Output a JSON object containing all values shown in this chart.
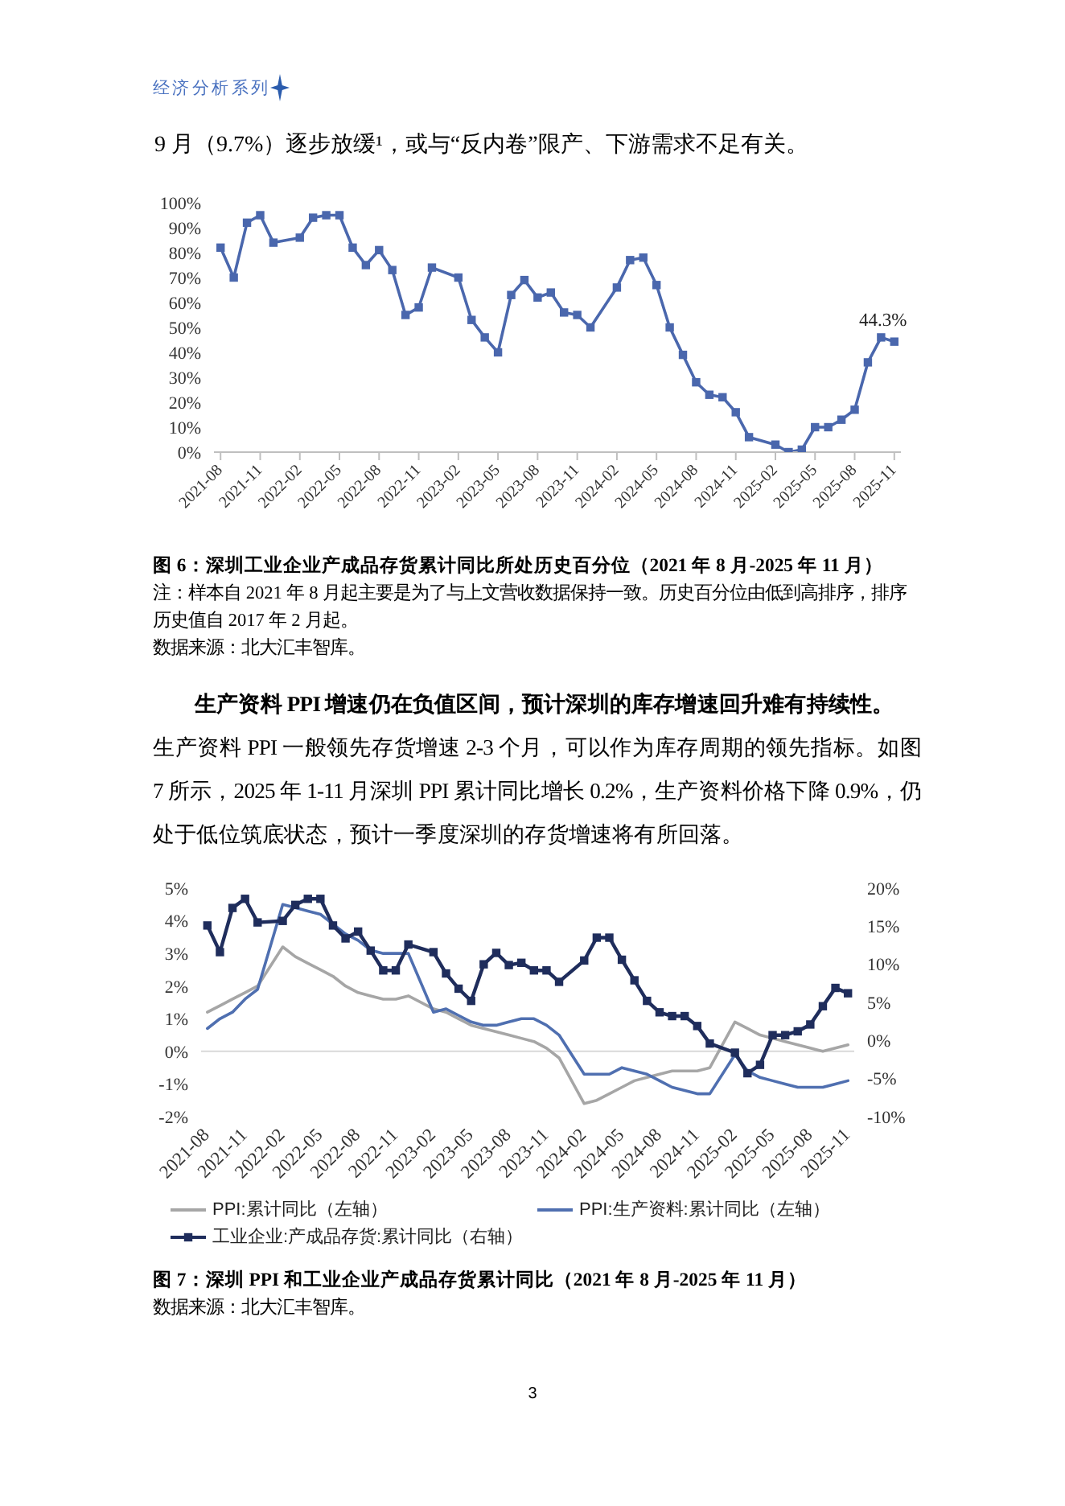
{
  "chart_data": [
    {
      "type": "line",
      "title": "图 6：深圳工业企业产成品存货累计同比所处历史百分位（2021 年 8 月-2025 年 11 月）",
      "annotations": [
        "经济分析系列",
        "9 月（9.7%）逐步放缓¹，或与“反内卷”限产、下游需求不足有关。",
        "注：样本自 2021 年 8 月起主要是为了与上文营收数据保持一致。历史百分位由低到高排序，排序历史值自 2017 年 2 月起。",
        "数据来源：北大汇丰智库。"
      ],
      "categories": [
        "2021-08",
        null,
        null,
        "2021-11",
        null,
        null,
        "2022-02",
        null,
        null,
        "2022-05",
        null,
        null,
        "2022-08",
        null,
        null,
        "2022-11",
        null,
        null,
        "2023-02",
        null,
        null,
        "2023-05",
        null,
        null,
        "2023-08",
        null,
        null,
        "2023-11",
        null,
        null,
        "2024-02",
        null,
        null,
        "2024-05",
        null,
        null,
        "2024-08",
        null,
        null,
        "2024-11",
        null,
        null,
        "2025-02",
        null,
        null,
        "2025-05",
        null,
        null,
        "2025-08",
        null,
        null,
        "2025-11"
      ],
      "values": [
        82,
        70,
        92,
        95,
        84,
        null,
        86,
        94,
        95,
        95,
        82,
        75,
        81,
        73,
        55,
        58,
        74,
        null,
        70,
        53,
        46,
        40,
        63,
        69,
        62,
        64,
        56,
        55,
        50,
        null,
        66,
        77,
        78,
        67,
        50,
        39,
        28,
        23,
        22,
        16,
        6,
        null,
        3,
        0,
        1,
        10,
        10,
        13,
        17,
        36,
        46,
        44.3
      ],
      "value_labels": [
        null,
        null,
        null,
        null,
        null,
        null,
        null,
        null,
        null,
        null,
        null,
        null,
        null,
        null,
        null,
        null,
        null,
        null,
        null,
        null,
        null,
        null,
        null,
        null,
        null,
        null,
        null,
        null,
        null,
        null,
        null,
        null,
        null,
        null,
        null,
        null,
        null,
        null,
        null,
        null,
        null,
        null,
        null,
        null,
        null,
        null,
        null,
        null,
        null,
        null,
        null,
        "44.3%"
      ],
      "color": "#4a67ad",
      "marker": "square",
      "ylim": [
        0,
        100
      ],
      "yticks": [
        {
          "value": 0,
          "label": "0%"
        },
        {
          "value": 10,
          "label": "10%"
        },
        {
          "value": 20,
          "label": "20%"
        },
        {
          "value": 30,
          "label": "30%"
        },
        {
          "value": 40,
          "label": "40%"
        },
        {
          "value": 50,
          "label": "50%"
        },
        {
          "value": 60,
          "label": "60%"
        },
        {
          "value": 70,
          "label": "70%"
        },
        {
          "value": 80,
          "label": "80%"
        },
        {
          "value": 90,
          "label": "90%"
        },
        {
          "value": 100,
          "label": "100%"
        }
      ]
    },
    {
      "type": "line",
      "title": "图 7：深圳 PPI 和工业企业产成品存货累计同比（2021 年 8 月-2025 年 11 月）",
      "annotations": [
        "生产资料 PPI 增速仍在负值区间，预计深圳的库存增速回升难有持续性。",
        "生产资料 PPI 一般领先存货增速 2-3 个月，可以作为库存周期的领先指标。如图 7 所示，2025 年 1-11 月深圳 PPI 累计同比增长 0.2%，生产资料价格下降 0.9%，仍处于低位筑底状态，预计一季度深圳的存货增速将有所回落。",
        "数据来源：北大汇丰智库。",
        "3"
      ],
      "categories": [
        "2021-08",
        null,
        null,
        "2021-11",
        null,
        null,
        "2022-02",
        null,
        null,
        "2022-05",
        null,
        null,
        "2022-08",
        null,
        null,
        "2022-11",
        null,
        null,
        "2023-02",
        null,
        null,
        "2023-05",
        null,
        null,
        "2023-08",
        null,
        null,
        "2023-11",
        null,
        null,
        "2024-02",
        null,
        null,
        "2024-05",
        null,
        null,
        "2024-08",
        null,
        null,
        "2024-11",
        null,
        null,
        "2025-02",
        null,
        null,
        "2025-05",
        null,
        null,
        "2025-08",
        null,
        null,
        "2025-11"
      ],
      "series": [
        {
          "name": "PPI:累计同比（左轴）",
          "color": "#a6a6a6",
          "values": [
            1.2,
            1.4,
            1.6,
            1.8,
            2.0,
            null,
            3.2,
            2.9,
            2.7,
            2.5,
            2.3,
            2.0,
            1.8,
            1.7,
            1.6,
            1.6,
            1.7,
            null,
            1.3,
            1.2,
            1.0,
            0.8,
            0.7,
            0.6,
            0.5,
            0.4,
            0.3,
            0.1,
            -0.2,
            null,
            -1.6,
            -1.5,
            -1.3,
            -1.1,
            -0.9,
            -0.8,
            -0.7,
            -0.6,
            -0.6,
            -0.6,
            -0.5,
            null,
            0.9,
            0.7,
            0.5,
            0.4,
            0.3,
            0.2,
            0.1,
            0.0,
            0.1,
            0.2
          ]
        },
        {
          "name": "PPI:生产资料:累计同比（左轴）",
          "color": "#4f6fb0",
          "values": [
            0.7,
            1.0,
            1.2,
            1.6,
            1.9,
            null,
            4.5,
            4.4,
            4.3,
            4.2,
            3.9,
            3.6,
            3.4,
            3.1,
            3.0,
            3.0,
            3.0,
            null,
            1.2,
            1.3,
            1.1,
            0.9,
            0.8,
            0.8,
            0.9,
            1.0,
            1.0,
            0.8,
            0.5,
            null,
            -0.7,
            -0.7,
            -0.7,
            -0.5,
            -0.6,
            -0.7,
            -0.9,
            -1.1,
            -1.2,
            -1.3,
            -1.3,
            null,
            -0.1,
            -0.6,
            -0.8,
            -0.9,
            -1.0,
            -1.1,
            -1.1,
            -1.1,
            -1.0,
            -0.9
          ]
        },
        {
          "name": "工业企业:产成品存货:累计同比（右轴）",
          "color": "#1f2d5c",
          "axis": "y2",
          "marker": "square",
          "values": [
            15.1,
            11.6,
            17.4,
            18.6,
            15.5,
            null,
            15.7,
            17.8,
            18.6,
            18.6,
            15.1,
            13.4,
            14.3,
            11.8,
            9.2,
            9.2,
            12.6,
            null,
            11.6,
            8.8,
            6.8,
            5.2,
            10.0,
            11.5,
            9.9,
            10.2,
            9.2,
            9.2,
            7.7,
            null,
            10.5,
            13.5,
            13.5,
            10.6,
            7.9,
            5.2,
            3.7,
            3.2,
            3.2,
            1.9,
            -0.4,
            null,
            -1.6,
            -4.3,
            -3.2,
            0.7,
            0.7,
            1.2,
            2.1,
            4.5,
            6.9,
            6.2
          ]
        }
      ],
      "ylim": [
        -2,
        5
      ],
      "yticks": [
        {
          "value": -2,
          "label": "-2%"
        },
        {
          "value": -1,
          "label": "-1%"
        },
        {
          "value": 0,
          "label": "0%"
        },
        {
          "value": 1,
          "label": "1%"
        },
        {
          "value": 2,
          "label": "2%"
        },
        {
          "value": 3,
          "label": "3%"
        },
        {
          "value": 4,
          "label": "4%"
        },
        {
          "value": 5,
          "label": "5%"
        }
      ],
      "y2lim": [
        -10,
        20
      ],
      "y2ticks": [
        {
          "value": -10,
          "label": "-10%"
        },
        {
          "value": -5,
          "label": "-5%"
        },
        {
          "value": 0,
          "label": "0%"
        },
        {
          "value": 5,
          "label": "5%"
        },
        {
          "value": 10,
          "label": "10%"
        },
        {
          "value": 15,
          "label": "15%"
        },
        {
          "value": 20,
          "label": "20%"
        }
      ],
      "ref_lines": [
        {
          "axis": "y",
          "value": 0,
          "color": "#d9d9d9"
        }
      ],
      "legend": "bottom"
    }
  ]
}
